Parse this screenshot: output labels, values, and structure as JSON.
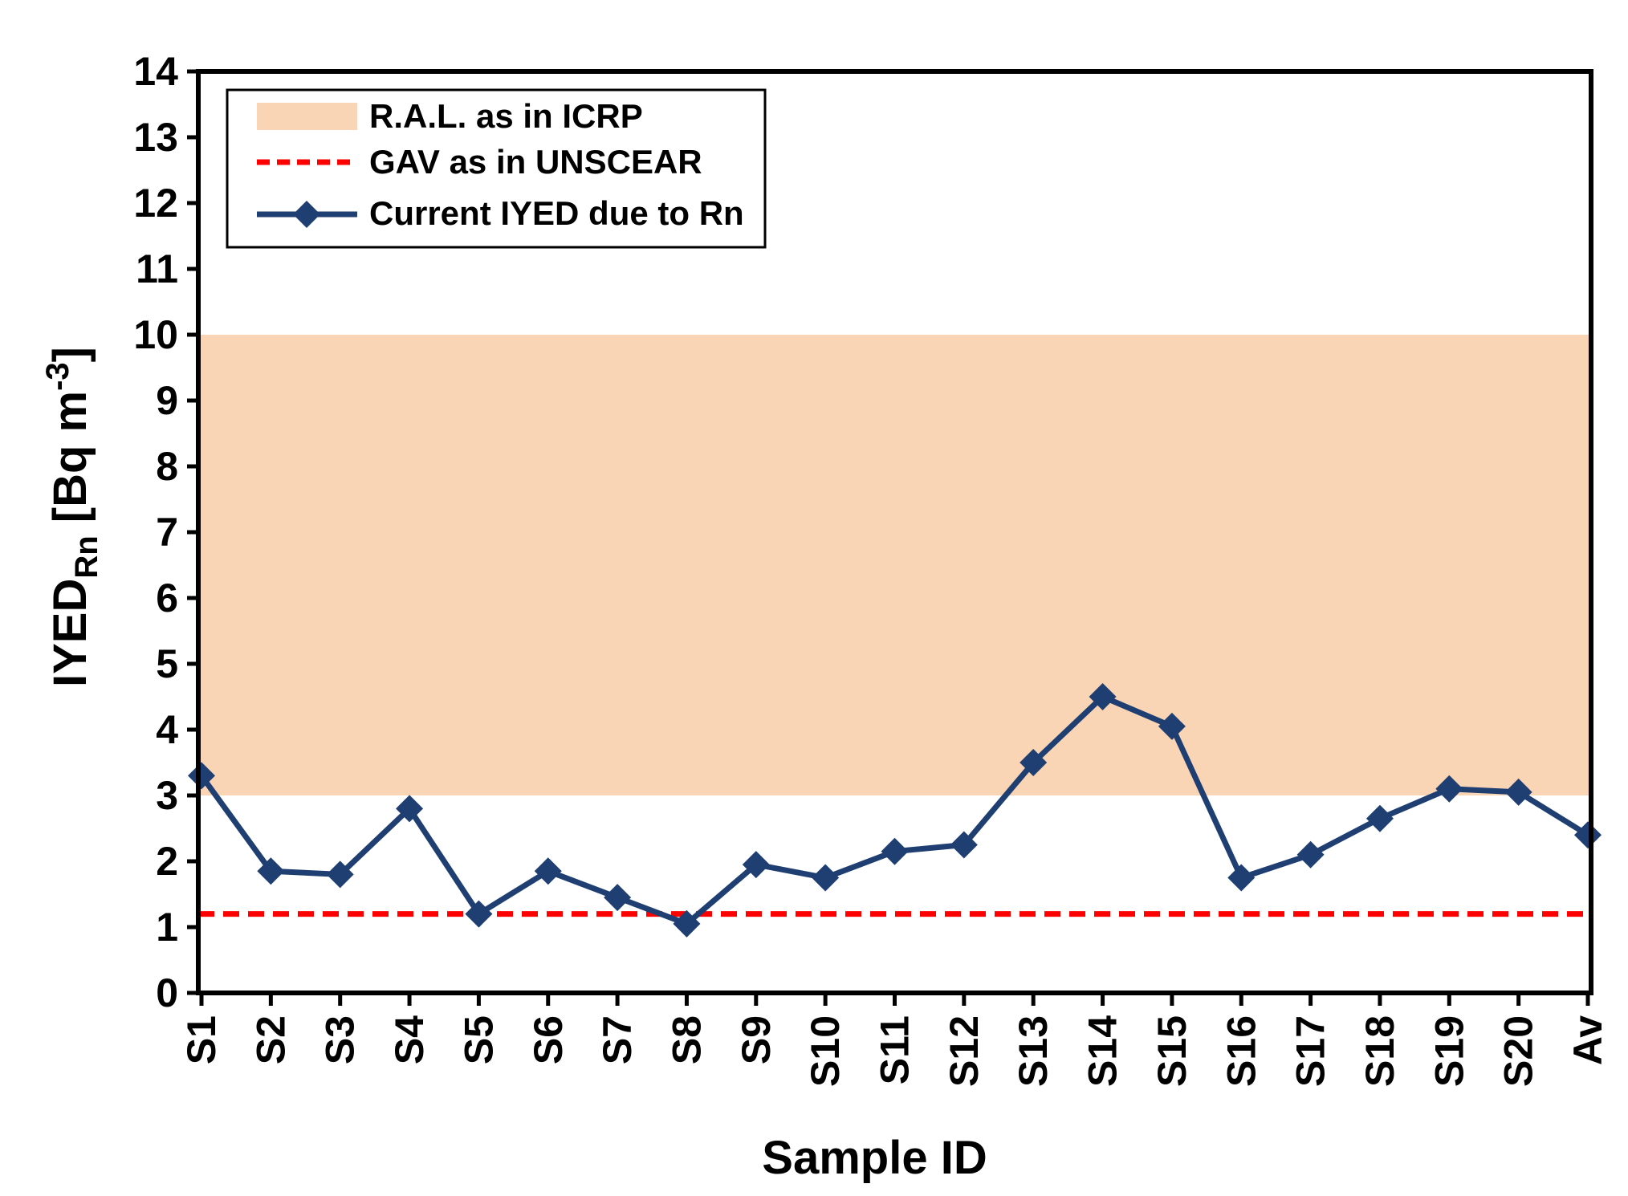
{
  "chart_data": {
    "type": "line",
    "title": "",
    "xlabel": "Sample ID",
    "ylabel": {
      "main": "IYED",
      "subscript": "Rn",
      "unit_prefix": " [Bq m",
      "unit_superscript": "-3",
      "unit_suffix": "]"
    },
    "ylim": [
      0,
      14
    ],
    "yticks": [
      0,
      1,
      2,
      3,
      4,
      5,
      6,
      7,
      8,
      9,
      10,
      11,
      12,
      13,
      14
    ],
    "categories": [
      "S1",
      "S2",
      "S3",
      "S4",
      "S5",
      "S6",
      "S7",
      "S8",
      "S9",
      "S10",
      "S11",
      "S12",
      "S13",
      "S14",
      "S15",
      "S16",
      "S17",
      "S18",
      "S19",
      "S20",
      "Av"
    ],
    "series": [
      {
        "name": "Current IYED due to Rn",
        "color": "#1f3f73",
        "marker": "diamond",
        "values": [
          3.3,
          1.85,
          1.8,
          2.8,
          1.2,
          1.85,
          1.45,
          1.05,
          1.95,
          1.75,
          2.15,
          2.25,
          3.5,
          4.5,
          4.05,
          1.75,
          2.1,
          2.65,
          3.1,
          3.05,
          2.4
        ]
      }
    ],
    "reference_band": {
      "name": "R.A.L. as in ICRP",
      "from": 3,
      "to": 10,
      "color": "#fad5b5"
    },
    "reference_line": {
      "name": "GAV as in UNSCEAR",
      "value": 1.2,
      "color": "#ff0000",
      "style": "dashed"
    },
    "legend": {
      "position": "top-left",
      "entries": [
        "R.A.L. as in ICRP",
        "GAV as in UNSCEAR",
        "Current IYED due to Rn"
      ]
    },
    "grid": false
  }
}
